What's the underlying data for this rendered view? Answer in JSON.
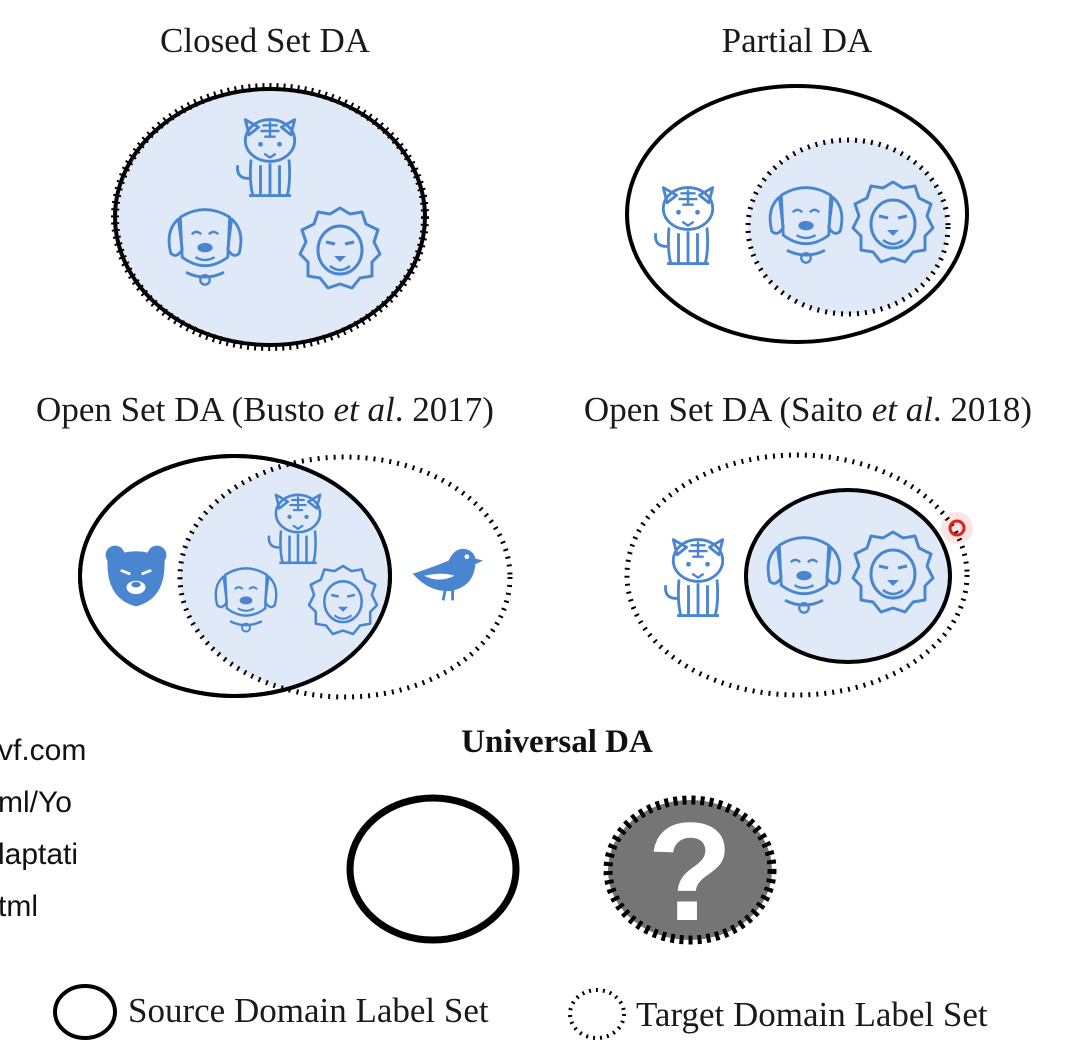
{
  "panels": {
    "closed_set": {
      "title": "Closed Set DA"
    },
    "partial": {
      "title": "Partial DA"
    },
    "open_set_busto": {
      "title_prefix": "Open Set DA (Busto ",
      "title_italic": "et al",
      "title_suffix": ". 2017)"
    },
    "open_set_saito": {
      "title_prefix": "Open Set DA (Saito ",
      "title_italic": "et al",
      "title_suffix": ". 2018)"
    },
    "universal": {
      "title": "Universal DA",
      "unknown_symbol": "?"
    }
  },
  "side_text": [
    "vf.com",
    "ml/Yo",
    "laptati",
    "tml"
  ],
  "legend": {
    "source": "Source Domain Label Set",
    "target": "Target Domain Label Set"
  },
  "colors": {
    "fill": "#dfe9f7",
    "icon": "#4a86cf",
    "outline": "#000000",
    "unknown_fill": "#757575",
    "pointer": "#e0201a"
  }
}
